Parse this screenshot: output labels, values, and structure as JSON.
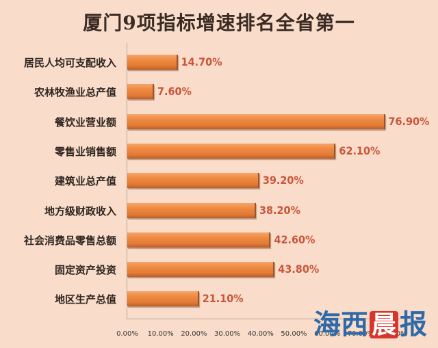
{
  "chart_data": {
    "type": "bar",
    "orientation": "horizontal",
    "title": "厦门9项指标增速排名全省第一",
    "xlabel": "",
    "ylabel": "",
    "categories": [
      "居民人均可支配收入",
      "农林牧渔业总产值",
      "餐饮业营业额",
      "零售业销售额",
      "建筑业总产值",
      "地方级财政收入",
      "社会消费品零售总额",
      "固定资产投资",
      "地区生产总值"
    ],
    "values": [
      14.7,
      7.6,
      76.9,
      62.1,
      39.2,
      38.2,
      42.6,
      43.8,
      21.1
    ],
    "value_labels": [
      "14.70%",
      "7.60%",
      "76.90%",
      "62.10%",
      "39.20%",
      "38.20%",
      "42.60%",
      "43.80%",
      "21.10%"
    ],
    "x_ticks": [
      "0.00%",
      "10.00%",
      "20.00%",
      "30.00%",
      "40.00%",
      "50.00%",
      "60.00%",
      "70.00%",
      "80.00%"
    ],
    "xlim": [
      0,
      80
    ],
    "grid": false,
    "legend": null,
    "bar_color": "#ef8a42",
    "label_color": "#c9553a"
  },
  "watermark": {
    "chars": [
      "海",
      "西",
      "晨",
      "报"
    ]
  }
}
